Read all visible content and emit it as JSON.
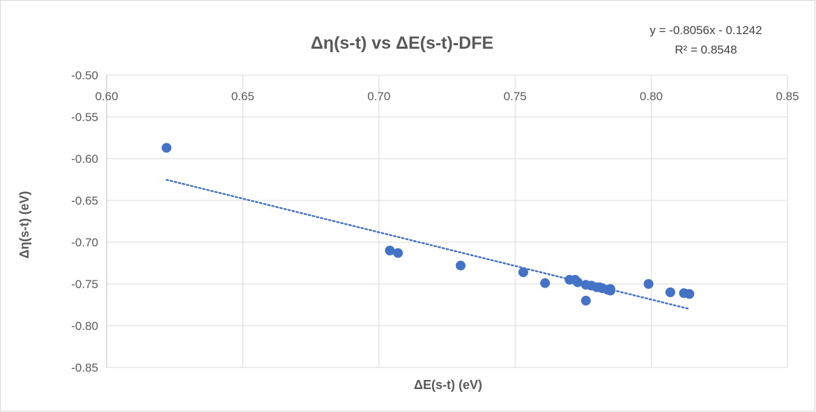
{
  "chart_data": {
    "type": "scatter",
    "title": "Δη(s-t) vs ΔE(s-t)-DFE",
    "xlabel": "ΔE(s-t) (eV)",
    "ylabel": "Δη(s-t) (eV)",
    "xlim": [
      0.6,
      0.85
    ],
    "ylim": [
      -0.85,
      -0.5
    ],
    "x_ticks": [
      "0.60",
      "0.65",
      "0.70",
      "0.75",
      "0.80",
      "0.85"
    ],
    "y_ticks": [
      "-0.50",
      "-0.55",
      "-0.60",
      "-0.65",
      "-0.70",
      "-0.75",
      "-0.80",
      "-0.85"
    ],
    "x_axis_position": "top",
    "grid": true,
    "trendline": {
      "type": "linear",
      "slope": -0.8056,
      "intercept": -0.1242,
      "x_range": [
        0.622,
        0.814
      ],
      "equation": "y = -0.8056x - 0.1242",
      "r_squared": "R² = 0.8548",
      "style": "dotted"
    },
    "colors": {
      "marker": "#4472c4",
      "trendline": "#4472c4",
      "grid": "#d9d9d9"
    },
    "points": [
      {
        "x": 0.622,
        "y": -0.587
      },
      {
        "x": 0.704,
        "y": -0.71
      },
      {
        "x": 0.707,
        "y": -0.713
      },
      {
        "x": 0.73,
        "y": -0.728
      },
      {
        "x": 0.753,
        "y": -0.736
      },
      {
        "x": 0.761,
        "y": -0.749
      },
      {
        "x": 0.77,
        "y": -0.745
      },
      {
        "x": 0.772,
        "y": -0.745
      },
      {
        "x": 0.773,
        "y": -0.748
      },
      {
        "x": 0.776,
        "y": -0.751
      },
      {
        "x": 0.776,
        "y": -0.77
      },
      {
        "x": 0.778,
        "y": -0.752
      },
      {
        "x": 0.78,
        "y": -0.754
      },
      {
        "x": 0.781,
        "y": -0.754
      },
      {
        "x": 0.782,
        "y": -0.755
      },
      {
        "x": 0.784,
        "y": -0.757
      },
      {
        "x": 0.785,
        "y": -0.758
      },
      {
        "x": 0.785,
        "y": -0.756
      },
      {
        "x": 0.799,
        "y": -0.75
      },
      {
        "x": 0.807,
        "y": -0.76
      },
      {
        "x": 0.812,
        "y": -0.761
      },
      {
        "x": 0.814,
        "y": -0.762
      }
    ]
  }
}
